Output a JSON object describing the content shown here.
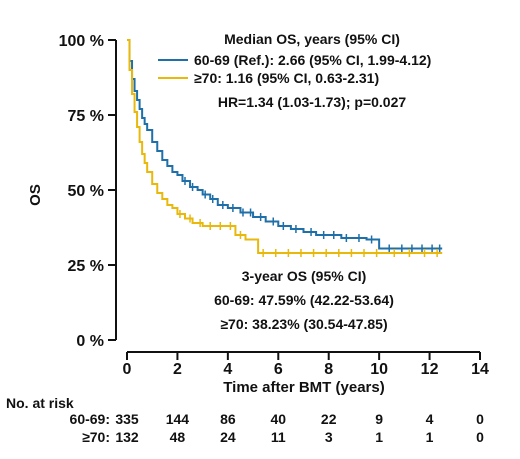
{
  "chart_data": {
    "type": "line",
    "ylabel": "OS",
    "xlabel": "Time after BMT (years)",
    "xlim": [
      0,
      14
    ],
    "ylim": [
      0,
      100
    ],
    "x_ticks": [
      0,
      2,
      4,
      6,
      8,
      10,
      12,
      14
    ],
    "y_ticks": [
      "0 %",
      "25 %",
      "50 %",
      "75 %",
      "100 %"
    ],
    "y_tick_values": [
      0,
      25,
      50,
      75,
      100
    ],
    "grid": false,
    "legend": {
      "title": "Median OS, years (95% CI)",
      "placement": "top-right",
      "entries": [
        {
          "label": "60-69 (Ref.): 2.66 (95% CI, 1.99-4.12)",
          "color": "#1f6fa8"
        },
        {
          "label": "≥70: 1.16 (95% CI, 0.63-2.31)",
          "color": "#e8b90c"
        }
      ]
    },
    "annotations": {
      "hr": "HR=1.34 (1.03-1.73); p=0.027",
      "three_year_title": "3-year OS (95% CI)",
      "three_year_line1": "60-69: 47.59% (42.22-53.64)",
      "three_year_line2": "≥70: 38.23% (30.54-47.85)"
    },
    "series": [
      {
        "name": "60-69",
        "color": "#1f6fa8",
        "x": [
          0,
          0.1,
          0.2,
          0.3,
          0.4,
          0.5,
          0.6,
          0.7,
          0.8,
          1.0,
          1.2,
          1.4,
          1.6,
          1.8,
          2.0,
          2.2,
          2.5,
          2.8,
          3.0,
          3.3,
          3.6,
          4.0,
          4.5,
          5.0,
          5.5,
          6.0,
          6.5,
          7.0,
          7.5,
          8.0,
          8.5,
          9.0,
          9.5,
          9.9,
          10.0,
          10.5,
          11.0,
          11.5,
          12.0,
          12.5
        ],
        "y": [
          100,
          93,
          87,
          83,
          80,
          77,
          74,
          72,
          70,
          66,
          63,
          60,
          58,
          56,
          55,
          53,
          51,
          50,
          48.5,
          47,
          45,
          44,
          42.5,
          41,
          39.5,
          38,
          37,
          36,
          35,
          35,
          34,
          34,
          33.5,
          33.5,
          30.5,
          30.5,
          30.5,
          30.5,
          30.5,
          30.5
        ],
        "censor_x": [
          2.3,
          2.6,
          3.1,
          3.4,
          3.8,
          4.2,
          4.6,
          4.9,
          5.3,
          5.8,
          6.2,
          6.7,
          7.3,
          7.8,
          8.2,
          8.7,
          9.2,
          9.7,
          10.4,
          10.9,
          11.3,
          11.7,
          12.1,
          12.4
        ]
      },
      {
        "name": "≥70",
        "color": "#e8b90c",
        "x": [
          0,
          0.1,
          0.2,
          0.3,
          0.4,
          0.5,
          0.6,
          0.7,
          0.8,
          1.0,
          1.2,
          1.4,
          1.6,
          1.8,
          2.0,
          2.3,
          2.6,
          3.0,
          3.5,
          4.0,
          4.3,
          4.7,
          5.0,
          5.2,
          5.5,
          6.0,
          7.0,
          8.0,
          9.0,
          10.0,
          11.0,
          12.0,
          12.5
        ],
        "y": [
          100,
          90,
          82,
          76,
          71,
          66,
          62,
          59,
          56,
          52,
          49,
          47,
          45,
          44,
          42,
          40.5,
          39,
          38,
          38,
          38,
          35,
          33.5,
          33.5,
          29,
          29,
          29,
          29,
          29,
          29,
          29,
          29,
          29,
          29
        ],
        "censor_x": [
          2.1,
          2.5,
          2.9,
          3.3,
          3.7,
          4.1,
          4.5,
          5.4,
          5.9,
          6.4,
          6.9,
          7.4,
          7.9,
          8.4,
          8.9,
          9.4,
          9.9,
          10.6,
          11.2,
          11.8,
          12.3
        ]
      }
    ],
    "risk_table": {
      "title": "No. at risk",
      "time_points": [
        0,
        2,
        4,
        6,
        8,
        10,
        12,
        14
      ],
      "rows": [
        {
          "label": "60-69:",
          "values": [
            "335",
            "144",
            "86",
            "40",
            "22",
            "9",
            "4",
            "0"
          ]
        },
        {
          "label": "≥70:",
          "values": [
            "132",
            "48",
            "24",
            "11",
            "3",
            "1",
            "1",
            "0"
          ]
        }
      ]
    }
  }
}
